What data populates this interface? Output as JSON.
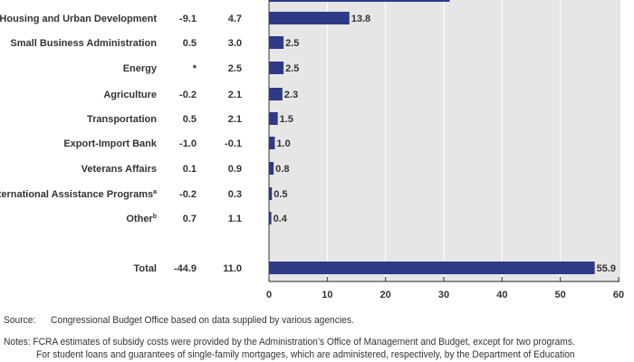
{
  "chart_data": {
    "type": "bar",
    "orientation": "horizontal",
    "xlim": [
      0,
      60
    ],
    "xticks": [
      "0",
      "10",
      "20",
      "30",
      "40",
      "50",
      "60"
    ],
    "grid": true,
    "bar_color": "#2e3a87",
    "plot_background": "#e6e6e6",
    "partial_top_bar_value": 31,
    "rows": [
      {
        "label": "Housing and Urban Development",
        "sup": "",
        "col1": "-9.1",
        "col2": "4.7",
        "value": 13.8,
        "value_label": "13.8"
      },
      {
        "label": "Small Business Administration",
        "sup": "",
        "col1": "0.5",
        "col2": "3.0",
        "value": 2.5,
        "value_label": "2.5"
      },
      {
        "label": "Energy",
        "sup": "",
        "col1": "*",
        "col2": "2.5",
        "value": 2.5,
        "value_label": "2.5"
      },
      {
        "label": "Agriculture",
        "sup": "",
        "col1": "-0.2",
        "col2": "2.1",
        "value": 2.3,
        "value_label": "2.3"
      },
      {
        "label": "Transportation",
        "sup": "",
        "col1": "0.5",
        "col2": "2.1",
        "value": 1.5,
        "value_label": "1.5"
      },
      {
        "label": "Export-Import Bank",
        "sup": "",
        "col1": "-1.0",
        "col2": "-0.1",
        "value": 1.0,
        "value_label": "1.0"
      },
      {
        "label": "Veterans Affairs",
        "sup": "",
        "col1": "0.1",
        "col2": "0.9",
        "value": 0.8,
        "value_label": "0.8"
      },
      {
        "label": "International Assistance Programs",
        "sup": "a",
        "col1": "-0.2",
        "col2": "0.3",
        "value": 0.5,
        "value_label": "0.5"
      },
      {
        "label": "Other",
        "sup": "b",
        "col1": "0.7",
        "col2": "1.1",
        "value": 0.4,
        "value_label": "0.4"
      }
    ],
    "total": {
      "label": "Total",
      "col1": "-44.9",
      "col2": "11.0",
      "value": 55.9,
      "value_label": "55.9"
    }
  },
  "source": {
    "label": "Source:",
    "text": "Congressional Budget Office based on data supplied by various agencies."
  },
  "notes": {
    "label": "Notes:",
    "line1": "FCRA estimates of subsidy costs were provided by the Administration’s Office of Management and Budget, except for two programs.",
    "line2": "For student loans and guarantees of single-family mortgages, which are administered, respectively, by the Department of Education"
  }
}
